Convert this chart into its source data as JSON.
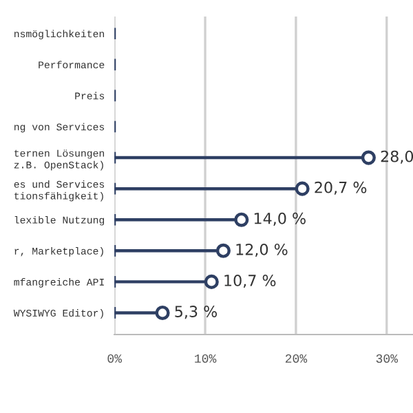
{
  "chart_data": {
    "type": "lollipop",
    "orientation": "horizontal",
    "categories": [
      "nsmöglichkeiten",
      "Performance",
      "Preis",
      "ng von Services",
      "ternen Lösungen\nz.B. OpenStack)",
      "es und Services\ntionsfähigkeit)",
      "lexible Nutzung",
      "r, Marketplace)",
      "mfangreiche API",
      "WYSIWYG Editor)"
    ],
    "values": [
      null,
      null,
      null,
      null,
      28.0,
      20.7,
      14.0,
      12.0,
      10.7,
      5.3
    ],
    "value_labels": [
      null,
      null,
      null,
      null,
      "28,0",
      "20,7 %",
      "14,0 %",
      "12,0 %",
      "10,7 %",
      "5,3 %"
    ],
    "color": "#2e3f63",
    "marker": "circle",
    "grid": "x",
    "xlim": [
      0,
      32.9
    ],
    "xticks": [
      {
        "value": 0,
        "label": "0%"
      },
      {
        "value": 10,
        "label": "10%"
      },
      {
        "value": 20,
        "label": "20%"
      },
      {
        "value": 30,
        "label": "30%"
      }
    ]
  }
}
